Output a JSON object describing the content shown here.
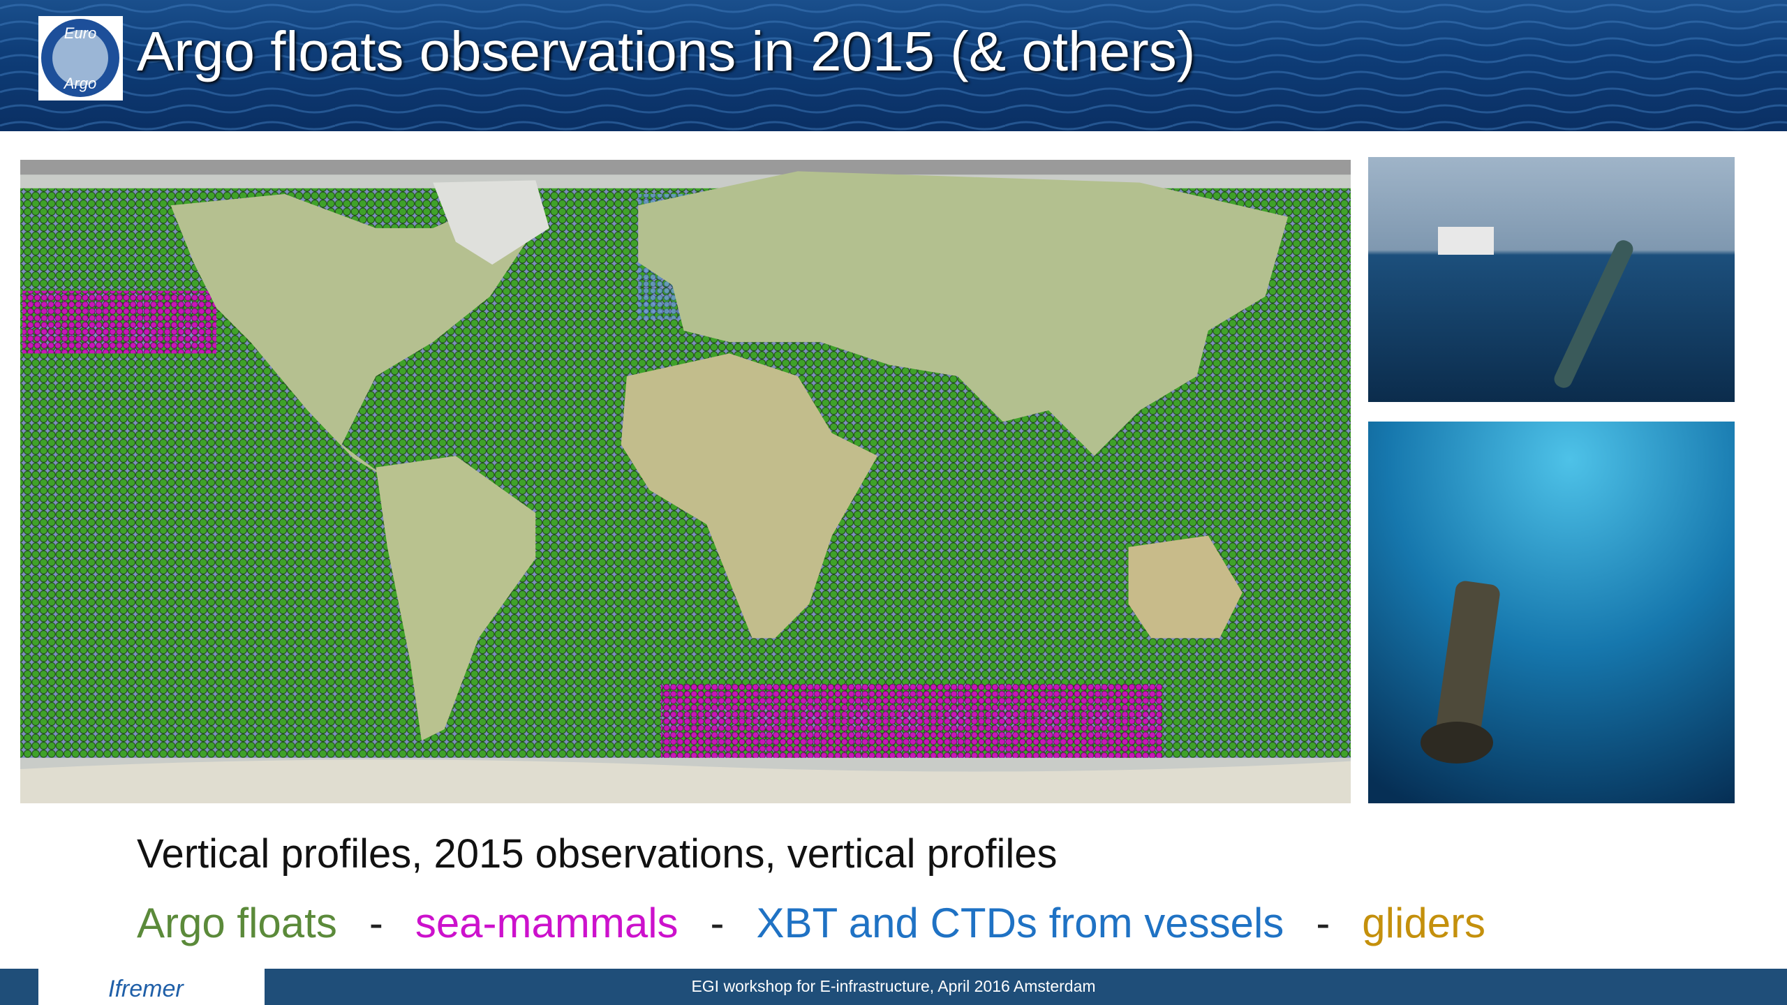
{
  "header": {
    "title": "Argo floats observations in 2015 (& others)",
    "logo": [
      "Euro",
      "Argo"
    ]
  },
  "body": {
    "line1": "Vertical profiles, 2015 observations, vertical profiles",
    "legend": [
      {
        "text": "Argo floats",
        "color": "#5b8a3a"
      },
      {
        "text": "-",
        "color": "#222222"
      },
      {
        "text": "sea-mammals",
        "color": "#cc11cc"
      },
      {
        "text": "-",
        "color": "#222222"
      },
      {
        "text": "XBT and CTDs from vessels",
        "color": "#1f72c4"
      },
      {
        "text": "-",
        "color": "#222222"
      },
      {
        "text": "gliders",
        "color": "#c4900c"
      }
    ]
  },
  "footer": {
    "text": "EGI workshop for E-infrastructure, April 2016 Amsterdam",
    "logo": "Ifremer"
  }
}
